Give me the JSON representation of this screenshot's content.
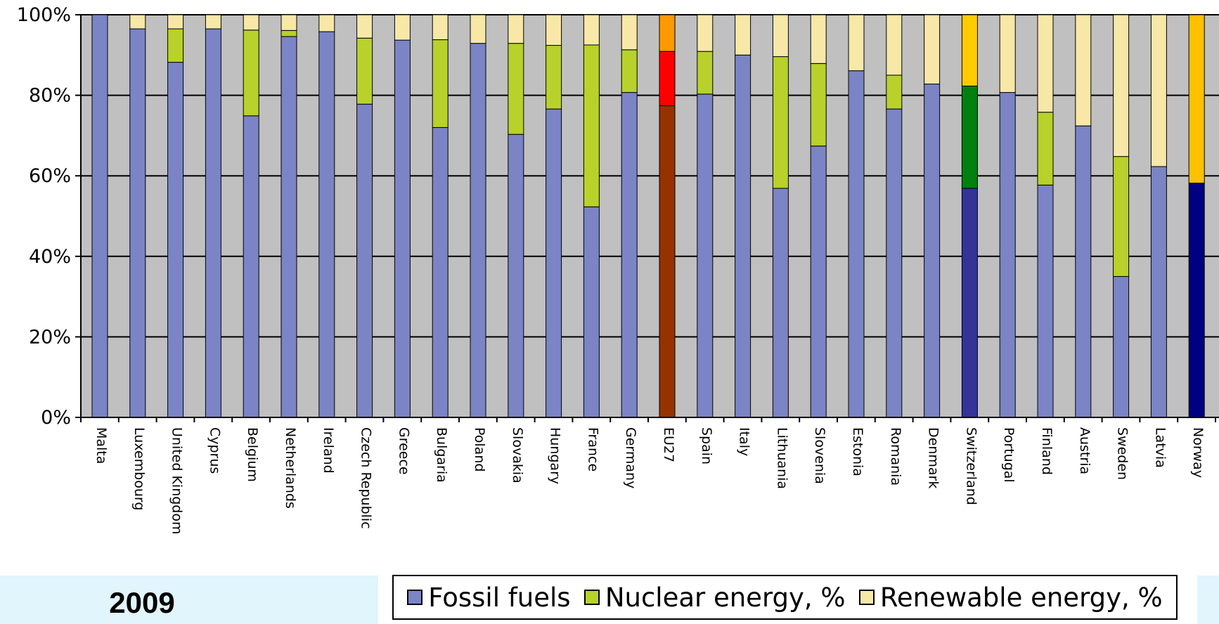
{
  "colors": {
    "plot_background": "#c0c0c0",
    "fossil": "#7b84c4",
    "nuclear": "#b8d12b",
    "renewable": "#f7e8a8",
    "eu27_fossil": "#963200",
    "eu27_nuclear": "#ff0000",
    "eu27_renewable": "#ff9900",
    "switzerland_fossil": "#333399",
    "switzerland_nuclear": "#00800f",
    "switzerland_renewable": "#ffcc00",
    "norway_fossil": "#000080",
    "norway_renewable": "#ffc000"
  },
  "year": "2009",
  "legend": {
    "fossil": "Fossil fuels",
    "nuclear": "Nuclear energy, %",
    "renewable": "Renewable energy, %"
  },
  "chart_data": {
    "type": "bar",
    "stacked": true,
    "orientation": "vertical",
    "ylim": [
      0,
      100
    ],
    "yticks": [
      "0%",
      "20%",
      "40%",
      "60%",
      "80%",
      "100%"
    ],
    "grid": true,
    "legend_position": "bottom",
    "categories": [
      "Malta",
      "Luxembourg",
      "United Kingdom",
      "Cyprus",
      "Belgium",
      "Netherlands",
      "Ireland",
      "Czech Republic",
      "Greece",
      "Bulgaria",
      "Poland",
      "Slovakia",
      "Hungary",
      "France",
      "Germany",
      "EU27",
      "Spain",
      "Italy",
      "Lithuania",
      "Slovenia",
      "Estonia",
      "Romania",
      "Denmark",
      "Switzerland",
      "Portugal",
      "Finland",
      "Austria",
      "Sweden",
      "Latvia",
      "Norway"
    ],
    "series": [
      {
        "name": "Fossil fuels",
        "values": [
          100,
          96.5,
          88.2,
          96.5,
          74.9,
          94.6,
          95.8,
          77.8,
          93.7,
          72.0,
          92.9,
          70.3,
          76.6,
          52.3,
          80.7,
          77.4,
          80.3,
          90.0,
          56.9,
          67.4,
          86.1,
          76.6,
          82.8,
          56.9,
          80.7,
          57.7,
          72.4,
          35.0,
          62.3,
          58.2
        ]
      },
      {
        "name": "Nuclear energy, %",
        "values": [
          0,
          0,
          8.3,
          0,
          21.3,
          1.5,
          0,
          16.4,
          0,
          21.8,
          0,
          22.6,
          15.8,
          40.2,
          10.6,
          13.5,
          10.6,
          0,
          32.7,
          20.5,
          0,
          8.4,
          0,
          25.4,
          0,
          18.1,
          0,
          29.8,
          0,
          0
        ]
      },
      {
        "name": "Renewable energy, %",
        "values": [
          0,
          3.5,
          3.5,
          3.5,
          3.8,
          3.9,
          4.2,
          5.8,
          6.3,
          6.2,
          7.1,
          7.1,
          7.6,
          7.5,
          8.7,
          9.1,
          9.1,
          10.0,
          10.4,
          12.1,
          13.9,
          15.0,
          17.2,
          17.7,
          19.3,
          24.2,
          27.6,
          35.2,
          37.7,
          41.8
        ]
      }
    ]
  }
}
